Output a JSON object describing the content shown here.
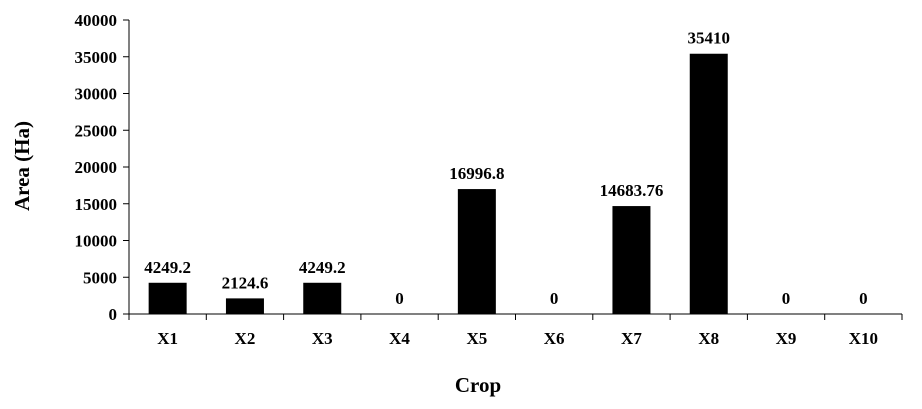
{
  "chart_data": {
    "type": "bar",
    "title": "",
    "xlabel": "Crop",
    "ylabel": "Area (Ha)",
    "categories": [
      "X1",
      "X2",
      "X3",
      "X4",
      "X5",
      "X6",
      "X7",
      "X8",
      "X9",
      "X10"
    ],
    "values": [
      4249.2,
      2124.6,
      4249.2,
      0,
      16996.8,
      0,
      14683.76,
      35410,
      0,
      0
    ],
    "data_labels": [
      "4249.2",
      "2124.6",
      "4249.2",
      "0",
      "16996.8",
      "0",
      "14683.76",
      "35410",
      "0",
      "0"
    ],
    "ylim": [
      0,
      40000
    ],
    "yticks": [
      0,
      5000,
      10000,
      15000,
      20000,
      25000,
      30000,
      35000,
      40000
    ],
    "ytick_labels": [
      "0",
      "5000",
      "10000",
      "15000",
      "20000",
      "25000",
      "30000",
      "35000",
      "40000"
    ],
    "grid": false,
    "legend": "none",
    "colors": {
      "bar": "#000000",
      "axis": "#000000",
      "text": "#000000",
      "background": "#ffffff"
    }
  }
}
